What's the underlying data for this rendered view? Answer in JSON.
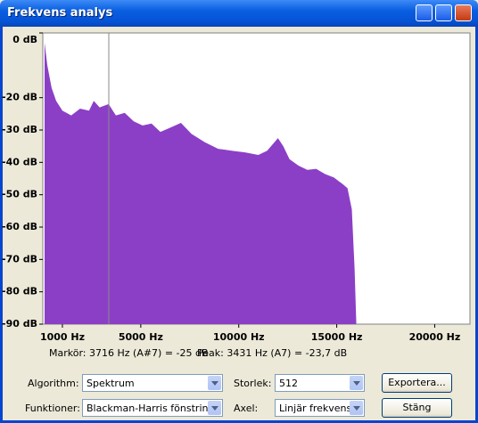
{
  "window": {
    "title": "Frekvens analys"
  },
  "chart_data": {
    "type": "area",
    "color": "#8b3fc6",
    "x": [
      90,
      230,
      450,
      680,
      1000,
      1450,
      1900,
      2360,
      2600,
      2900,
      3360,
      3730,
      4180,
      4640,
      5090,
      5550,
      6000,
      6450,
      7050,
      7590,
      8270,
      8950,
      9640,
      10320,
      11000,
      11450,
      12000,
      12270,
      12590,
      13050,
      13500,
      13950,
      14400,
      14860,
      15320,
      15550,
      15770,
      15910,
      16000
    ],
    "values": [
      -3,
      -10,
      -17,
      -21,
      -24,
      -25.5,
      -23.4,
      -24,
      -21,
      -23,
      -22,
      -25.5,
      -24.7,
      -27.3,
      -28.6,
      -28,
      -30.6,
      -29.4,
      -27.8,
      -31.2,
      -33.8,
      -35.8,
      -36.4,
      -36.9,
      -37.7,
      -36.4,
      -32.5,
      -35,
      -39,
      -41,
      -42.3,
      -42,
      -43.6,
      -44.7,
      -46.8,
      -48,
      -54.5,
      -72.7,
      -90
    ],
    "xlim": [
      0,
      21800
    ],
    "xticks": [
      {
        "value": 1000,
        "label": "1000 Hz"
      },
      {
        "value": 5000,
        "label": "5000 Hz"
      },
      {
        "value": 10000,
        "label": "10000 Hz"
      },
      {
        "value": 15000,
        "label": "15000 Hz"
      },
      {
        "value": 20000,
        "label": "20000 Hz"
      }
    ],
    "ylim": [
      -90,
      0
    ],
    "yticks": [
      {
        "value": 0,
        "label": "0 dB"
      },
      {
        "value": -20,
        "label": "-20 dB"
      },
      {
        "value": -30,
        "label": "-30 dB"
      },
      {
        "value": -40,
        "label": "-40 dB"
      },
      {
        "value": -50,
        "label": "-50 dB"
      },
      {
        "value": -60,
        "label": "-60 dB"
      },
      {
        "value": -70,
        "label": "-70 dB"
      },
      {
        "value": -80,
        "label": "-80 dB"
      },
      {
        "value": -90,
        "label": "-90 dB"
      }
    ]
  },
  "status": {
    "marker": "Markör: 3716 Hz (A#7) = -25 dB",
    "peak": "Peak: 3431 Hz (A7) = -23,7 dB"
  },
  "controls": {
    "algorithm": {
      "label": "Algorithm:",
      "value": "Spektrum"
    },
    "size": {
      "label": "Storlek:",
      "value": "512"
    },
    "export": "Exportera...",
    "function": {
      "label": "Funktioner:",
      "value": "Blackman-Harris fönstring"
    },
    "axis": {
      "label": "Axel:",
      "value": "Linjär frekvens"
    },
    "close": "Stäng"
  }
}
